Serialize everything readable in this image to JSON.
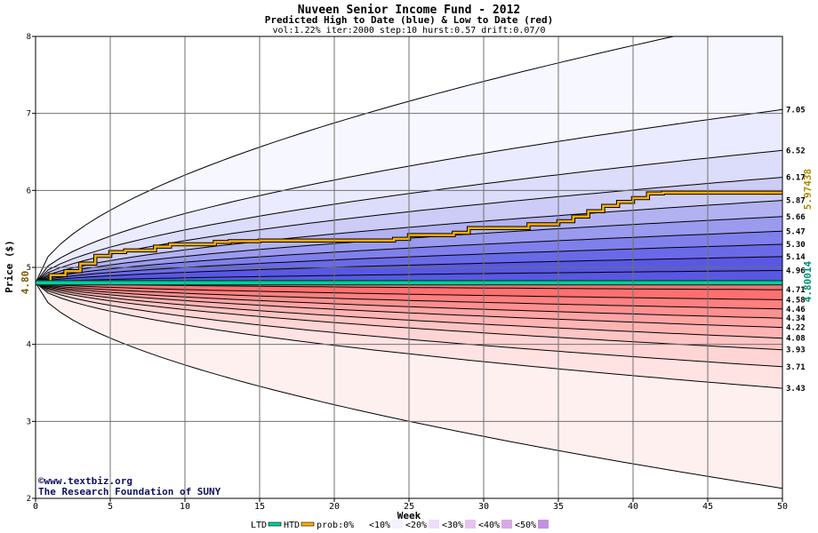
{
  "chart_data": {
    "type": "area",
    "title": "Nuveen Senior Income Fund - 2012",
    "subtitle": "Predicted High to Date (blue) &  Low to Date (red)",
    "params": "vol:1.22% iter:2000 step:10 hurst:0.57 drift:0.07/0",
    "xlabel": "Week",
    "ylabel": "Price ($)",
    "xlim": [
      0,
      50
    ],
    "ylim": [
      2,
      8
    ],
    "x_ticks": [
      0,
      5,
      10,
      15,
      20,
      25,
      30,
      35,
      40,
      45,
      50
    ],
    "y_ticks": [
      2,
      3,
      4,
      5,
      6,
      7,
      8
    ],
    "grid": true,
    "start_value": 4.8,
    "start_label": "4.80",
    "htd_final_label": "5.97438",
    "ltd_final_label": "4.80014",
    "high_quantile_labels": [
      "7.05",
      "6.52",
      "6.17",
      "5.87",
      "5.66",
      "5.47",
      "5.30",
      "5.14",
      "4.96"
    ],
    "high_quantile_ends": [
      7.05,
      6.52,
      6.17,
      5.87,
      5.66,
      5.47,
      5.3,
      5.14,
      4.96
    ],
    "low_quantile_labels": [
      "4.71",
      "4.58",
      "4.46",
      "4.34",
      "4.22",
      "4.08",
      "3.93",
      "3.71",
      "3.43"
    ],
    "low_quantile_ends": [
      4.71,
      4.58,
      4.46,
      4.34,
      4.22,
      4.08,
      3.93,
      3.71,
      3.43
    ],
    "high_envelope_end": 8.3,
    "low_envelope_end": 2.13,
    "series": [
      {
        "name": "HTD",
        "color": "#ffb000",
        "x": [
          0,
          1,
          2,
          3,
          4,
          5,
          6,
          8,
          9,
          12,
          13,
          15,
          20,
          24,
          25,
          28,
          29,
          33,
          35,
          36,
          37,
          38,
          39,
          40,
          41,
          42,
          45,
          50
        ],
        "values": [
          4.8,
          4.9,
          4.95,
          5.05,
          5.15,
          5.2,
          5.22,
          5.27,
          5.3,
          5.33,
          5.34,
          5.35,
          5.35,
          5.37,
          5.42,
          5.45,
          5.51,
          5.56,
          5.6,
          5.66,
          5.73,
          5.8,
          5.85,
          5.9,
          5.96,
          5.97,
          5.97,
          5.97
        ]
      },
      {
        "name": "LTD",
        "color": "#00d0a0",
        "x": [
          0,
          50
        ],
        "values": [
          4.8,
          4.8
        ]
      }
    ],
    "band_colors": {
      "high": [
        "#f7f7ff",
        "#ebebff",
        "#dcdcfb",
        "#ccccf6",
        "#b2b2f2",
        "#9a9aef",
        "#8080ec",
        "#6a6ae8",
        "#5858e4"
      ],
      "low": [
        "#fff0f0",
        "#ffe2e2",
        "#ffd4d4",
        "#ffc4c4",
        "#ffb4b4",
        "#ffa4a4",
        "#ff9090",
        "#ff8080",
        "#ff7070"
      ]
    },
    "legend": {
      "items": [
        "LTD",
        "HTD",
        "prob:0%",
        "<10%",
        "<20%",
        "<30%",
        "<40%",
        "<50%"
      ],
      "swatch_colors": [
        "#00d0a0",
        "#ffb000",
        "#ffffff",
        "#f5f0ff",
        "#eedcfb",
        "#e6c4f0",
        "#d8a8e8",
        "#c490e4"
      ]
    }
  },
  "credits": {
    "site": "©www.textbiz.org",
    "org": "The Research Foundation of SUNY"
  }
}
